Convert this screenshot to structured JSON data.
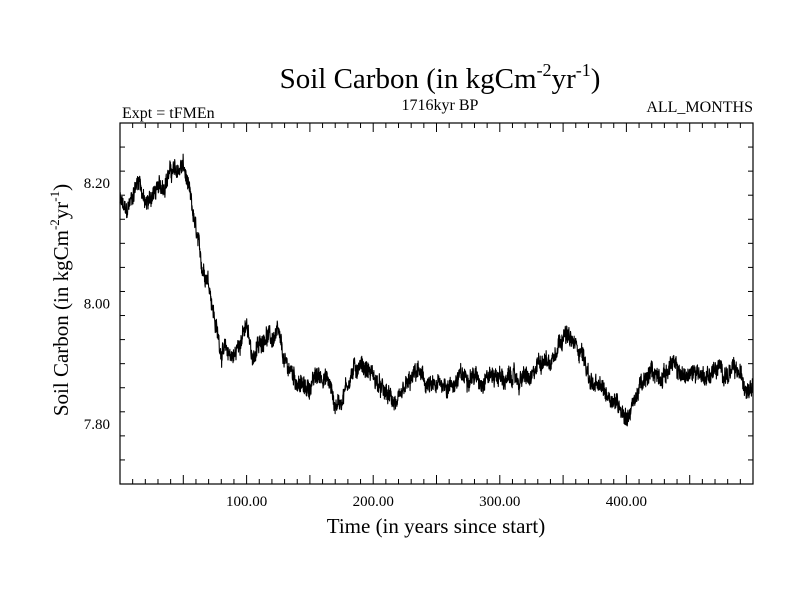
{
  "chart_data": {
    "type": "line",
    "title": "Soil Carbon (in kgCm",
    "title_sup1": "-2",
    "title_mid": "yr",
    "title_sup2": "-1",
    "title_end": ")",
    "subtitle_left": "Expt = tFMEn",
    "subtitle_center": "1716kyr BP",
    "subtitle_right": "ALL_MONTHS",
    "xlabel": "Time (in years since start)",
    "ylabel": "Soil Carbon (in kgCm",
    "ylabel_sup1": "-2",
    "ylabel_mid": "yr",
    "ylabel_sup2": "-1",
    "ylabel_end": ")",
    "xlim": [
      0,
      500
    ],
    "ylim": [
      7.7,
      8.3
    ],
    "x_ticks": [
      "100.00",
      "200.00",
      "300.00",
      "400.00"
    ],
    "y_ticks": [
      "7.80",
      "8.00",
      "8.20"
    ],
    "series": [
      {
        "name": "Soil Carbon",
        "color": "#000000",
        "band": 0.025,
        "x": [
          0,
          5,
          10,
          15,
          20,
          25,
          30,
          35,
          40,
          45,
          50,
          55,
          60,
          65,
          70,
          75,
          80,
          85,
          90,
          95,
          100,
          105,
          110,
          115,
          120,
          125,
          130,
          135,
          140,
          145,
          150,
          155,
          160,
          165,
          170,
          175,
          180,
          185,
          190,
          195,
          200,
          205,
          210,
          215,
          220,
          225,
          230,
          235,
          240,
          245,
          250,
          255,
          260,
          265,
          270,
          275,
          280,
          285,
          290,
          295,
          300,
          305,
          310,
          315,
          320,
          325,
          330,
          335,
          340,
          345,
          350,
          355,
          360,
          365,
          370,
          375,
          380,
          385,
          390,
          395,
          400,
          405,
          410,
          415,
          420,
          425,
          430,
          435,
          440,
          445,
          450,
          455,
          460,
          465,
          470,
          475,
          480,
          485,
          490,
          495,
          500
        ],
        "y": [
          8.17,
          8.15,
          8.18,
          8.21,
          8.16,
          8.18,
          8.19,
          8.2,
          8.22,
          8.22,
          8.23,
          8.18,
          8.12,
          8.06,
          8.04,
          7.97,
          7.92,
          7.92,
          7.91,
          7.94,
          7.96,
          7.91,
          7.93,
          7.95,
          7.94,
          7.95,
          7.9,
          7.89,
          7.87,
          7.86,
          7.86,
          7.88,
          7.88,
          7.87,
          7.83,
          7.84,
          7.87,
          7.89,
          7.9,
          7.89,
          7.88,
          7.86,
          7.85,
          7.84,
          7.83,
          7.86,
          7.87,
          7.89,
          7.87,
          7.86,
          7.86,
          7.87,
          7.86,
          7.87,
          7.88,
          7.88,
          7.88,
          7.87,
          7.88,
          7.88,
          7.88,
          7.87,
          7.88,
          7.87,
          7.88,
          7.87,
          7.9,
          7.91,
          7.9,
          7.93,
          7.95,
          7.94,
          7.93,
          7.92,
          7.88,
          7.86,
          7.86,
          7.85,
          7.84,
          7.83,
          7.81,
          7.83,
          7.86,
          7.87,
          7.89,
          7.88,
          7.88,
          7.9,
          7.89,
          7.88,
          7.88,
          7.89,
          7.88,
          7.88,
          7.89,
          7.89,
          7.88,
          7.89,
          7.88,
          7.86,
          7.87
        ]
      }
    ]
  }
}
